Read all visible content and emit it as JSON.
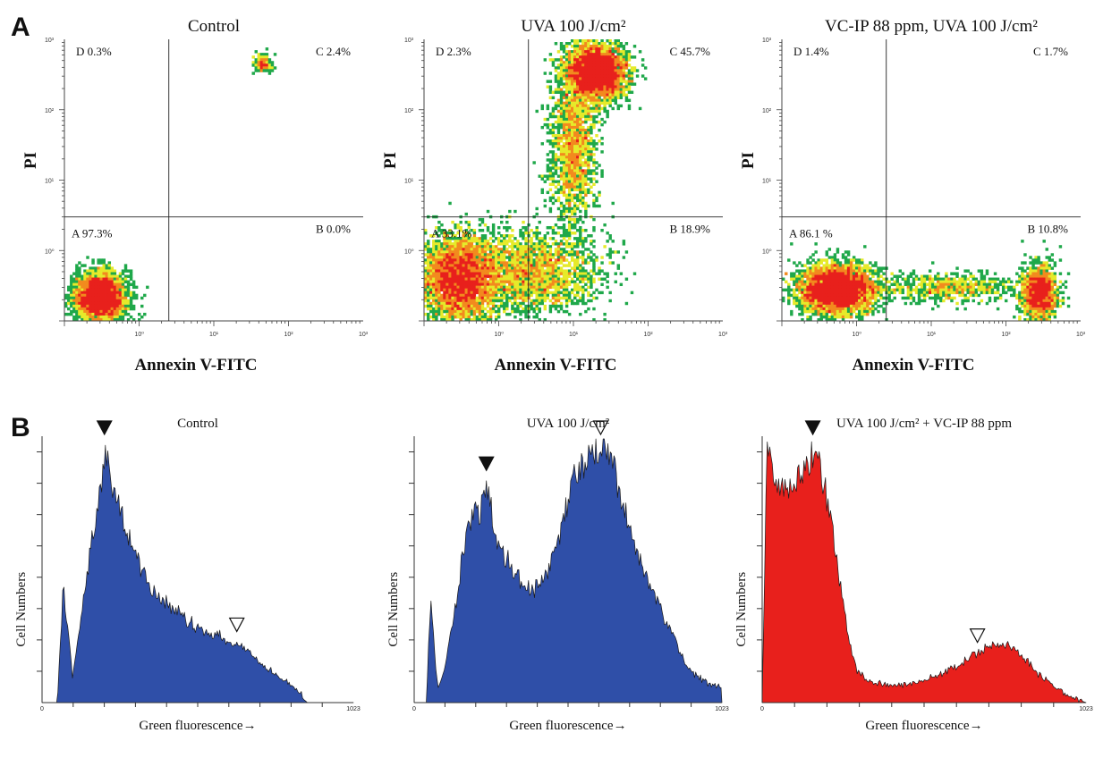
{
  "panel_labels": {
    "a": "A",
    "b": "B"
  },
  "chart_data": [
    {
      "type": "scatter",
      "title": "Control",
      "xlabel": "Annexin V-FITC",
      "ylabel": "PI",
      "xscale": "log",
      "yscale": "log",
      "xlim": [
        0.1,
        1000
      ],
      "ylim": [
        0.1,
        1000
      ],
      "x_ticks": [
        "10⁰",
        "10¹",
        "10²",
        "10³"
      ],
      "y_ticks": [
        "10⁰",
        "10¹",
        "10²",
        "10³"
      ],
      "gate": {
        "x": 2.5,
        "y": 3
      },
      "quadrants": {
        "A": "A 97.3%",
        "B": "B 0.0%",
        "C": "C 2.4%",
        "D": "D 0.3%"
      },
      "density_colors": [
        "#2b4bb0",
        "#1fa84a",
        "#e6ea2a",
        "#f28a1e",
        "#e8201c"
      ],
      "populations": [
        {
          "x": 0.3,
          "y": 0.22,
          "sx": 0.17,
          "sy": 0.17,
          "weight": 1.0
        },
        {
          "x": 45,
          "y": 450,
          "sx": 0.06,
          "sy": 0.06,
          "weight": 0.05
        }
      ]
    },
    {
      "type": "scatter",
      "title": "UVA 100 J/cm²",
      "xlabel": "Annexin V-FITC",
      "ylabel": "PI",
      "xscale": "log",
      "yscale": "log",
      "xlim": [
        0.1,
        1000
      ],
      "ylim": [
        0.1,
        1000
      ],
      "x_ticks": [
        "10⁰",
        "10¹",
        "10²",
        "10³"
      ],
      "y_ticks": [
        "10⁰",
        "10¹",
        "10²",
        "10³"
      ],
      "gate": {
        "x": 2.5,
        "y": 3
      },
      "quadrants": {
        "A": "A 33.1%",
        "B": "B 18.9%",
        "C": "C 45.7%",
        "D": "D 2.3%"
      },
      "density_colors": [
        "#2b4bb0",
        "#1fa84a",
        "#e6ea2a",
        "#f28a1e",
        "#e8201c"
      ],
      "populations": [
        {
          "x": 0.3,
          "y": 0.4,
          "sx": 0.28,
          "sy": 0.3,
          "weight": 1.0
        },
        {
          "x": 20,
          "y": 350,
          "sx": 0.2,
          "sy": 0.2,
          "weight": 0.9
        },
        {
          "x": 3,
          "y": 0.5,
          "sx": 0.45,
          "sy": 0.3,
          "weight": 0.5
        },
        {
          "x": 10,
          "y": 30,
          "sx": 0.15,
          "sy": 0.55,
          "weight": 0.4
        }
      ]
    },
    {
      "type": "scatter",
      "title": "VC-IP 88 ppm, UVA 100 J/cm²",
      "xlabel": "Annexin V-FITC",
      "ylabel": "PI",
      "xscale": "log",
      "yscale": "log",
      "xlim": [
        0.1,
        1000
      ],
      "ylim": [
        0.1,
        1000
      ],
      "x_ticks": [
        "10⁰",
        "10¹",
        "10²",
        "10³"
      ],
      "y_ticks": [
        "10⁰",
        "10¹",
        "10²",
        "10³"
      ],
      "gate": {
        "x": 2.5,
        "y": 3
      },
      "quadrants": {
        "A": "A 86.1 %",
        "B": "B 10.8%",
        "C": "C 1.7%",
        "D": "D 1.4%"
      },
      "density_colors": [
        "#2b4bb0",
        "#1fa84a",
        "#e6ea2a",
        "#f28a1e",
        "#e8201c"
      ],
      "populations": [
        {
          "x": 0.55,
          "y": 0.28,
          "sx": 0.25,
          "sy": 0.17,
          "weight": 1.0
        },
        {
          "x": 280,
          "y": 0.25,
          "sx": 0.12,
          "sy": 0.2,
          "weight": 0.35
        },
        {
          "x": 20,
          "y": 0.3,
          "sx": 0.5,
          "sy": 0.1,
          "weight": 0.15
        }
      ]
    },
    {
      "type": "area",
      "title": "Control",
      "xlabel": "Green fluorescence→",
      "ylabel": "Cell Numbers",
      "xlim": [
        0,
        1023
      ],
      "x_tick_labels": [
        "0",
        "1023"
      ],
      "color": "#2f4fa8",
      "markers": [
        {
          "x": 205,
          "style": "filled"
        },
        {
          "x": 640,
          "style": "open"
        }
      ],
      "x": [
        0,
        50,
        70,
        80,
        90,
        100,
        120,
        140,
        160,
        180,
        200,
        205,
        215,
        240,
        260,
        280,
        300,
        330,
        360,
        400,
        450,
        500,
        550,
        600,
        650,
        680,
        700,
        750,
        800,
        850,
        860,
        870
      ],
      "values": [
        0,
        0,
        0.45,
        0.3,
        0.22,
        0.1,
        0.25,
        0.4,
        0.58,
        0.72,
        0.86,
        0.95,
        0.9,
        0.78,
        0.72,
        0.62,
        0.58,
        0.5,
        0.42,
        0.38,
        0.34,
        0.29,
        0.26,
        0.24,
        0.22,
        0.2,
        0.16,
        0.12,
        0.08,
        0.04,
        0.02,
        0
      ]
    },
    {
      "type": "area",
      "title": "UVA 100 J/cm²",
      "xlabel": "Green fluorescence→",
      "ylabel": "Cell Numbers",
      "xlim": [
        0,
        1023
      ],
      "x_tick_labels": [
        "0",
        "1023"
      ],
      "color": "#2f4fa8",
      "markers": [
        {
          "x": 240,
          "style": "filled"
        },
        {
          "x": 620,
          "style": "open"
        }
      ],
      "x": [
        0,
        40,
        55,
        70,
        80,
        100,
        120,
        140,
        160,
        180,
        200,
        220,
        240,
        260,
        280,
        300,
        330,
        360,
        390,
        420,
        450,
        480,
        510,
        540,
        570,
        600,
        620,
        640,
        660,
        700,
        740,
        780,
        820,
        860,
        900,
        940,
        980,
        1023
      ],
      "values": [
        0,
        0,
        0.4,
        0.15,
        0.05,
        0.12,
        0.25,
        0.38,
        0.55,
        0.66,
        0.7,
        0.72,
        0.8,
        0.7,
        0.58,
        0.55,
        0.5,
        0.45,
        0.42,
        0.45,
        0.5,
        0.62,
        0.76,
        0.86,
        0.92,
        0.95,
        0.97,
        0.94,
        0.88,
        0.72,
        0.58,
        0.45,
        0.35,
        0.25,
        0.15,
        0.1,
        0.07,
        0.06
      ]
    },
    {
      "type": "area",
      "title": "UVA 100 J/cm² + VC-IP 88 ppm",
      "xlabel": "Green fluorescence→",
      "ylabel": "Cell Numbers",
      "xlim": [
        0,
        1023
      ],
      "x_tick_labels": [
        "0",
        "1023"
      ],
      "color": "#e8201c",
      "markers": [
        {
          "x": 160,
          "style": "filled"
        },
        {
          "x": 680,
          "style": "open"
        }
      ],
      "x": [
        0,
        15,
        25,
        40,
        60,
        80,
        100,
        120,
        140,
        160,
        180,
        200,
        220,
        240,
        260,
        280,
        300,
        340,
        380,
        420,
        460,
        500,
        540,
        580,
        620,
        660,
        700,
        740,
        780,
        820,
        860,
        900,
        950,
        1000,
        1023
      ],
      "values": [
        0,
        0.96,
        0.9,
        0.82,
        0.78,
        0.8,
        0.85,
        0.86,
        0.9,
        0.93,
        0.9,
        0.8,
        0.65,
        0.5,
        0.35,
        0.2,
        0.12,
        0.08,
        0.07,
        0.06,
        0.07,
        0.08,
        0.1,
        0.12,
        0.14,
        0.17,
        0.2,
        0.22,
        0.21,
        0.18,
        0.12,
        0.08,
        0.04,
        0.01,
        0
      ]
    }
  ]
}
